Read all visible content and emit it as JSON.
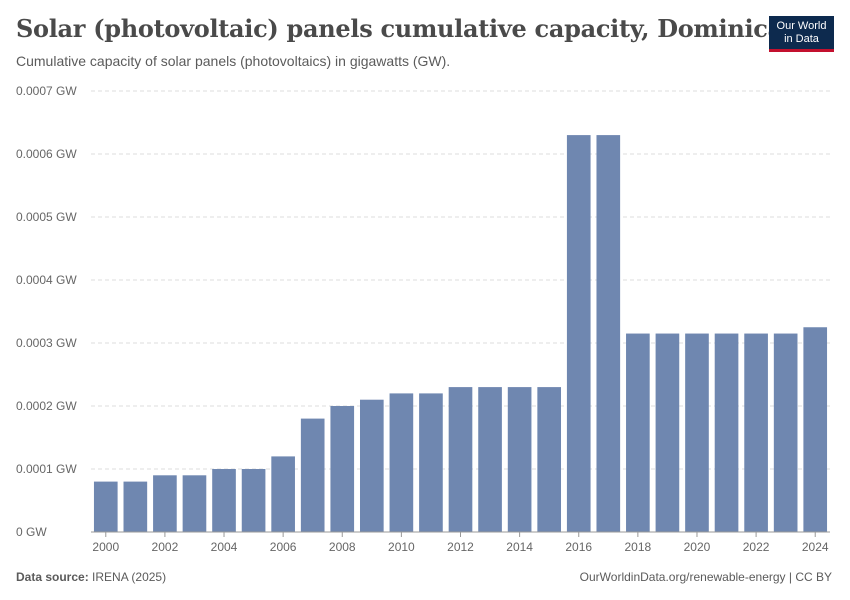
{
  "header": {
    "title": "Solar (photovoltaic) panels cumulative capacity, Dominica",
    "subtitle": "Cumulative capacity of solar panels (photovoltaics) in gigawatts (GW)."
  },
  "logo": {
    "line1": "Our World",
    "line2": "in Data"
  },
  "footer": {
    "source_label": "Data source:",
    "source_value": "IRENA (2025)",
    "url": "OurWorldinData.org/renewable-energy | CC BY"
  },
  "colors": {
    "bar": "#6f87b0",
    "grid": "#dddddd",
    "axis": "#999999"
  },
  "chart_data": {
    "type": "bar",
    "title": "Solar (photovoltaic) panels cumulative capacity, Dominica",
    "xlabel": "",
    "ylabel": "GW",
    "categories": [
      "2000",
      "2001",
      "2002",
      "2003",
      "2004",
      "2005",
      "2006",
      "2007",
      "2008",
      "2009",
      "2010",
      "2011",
      "2012",
      "2013",
      "2014",
      "2015",
      "2016",
      "2017",
      "2018",
      "2019",
      "2020",
      "2021",
      "2022",
      "2023",
      "2024"
    ],
    "values": [
      8e-05,
      8e-05,
      9e-05,
      9e-05,
      0.0001,
      0.0001,
      0.00012,
      0.00018,
      0.0002,
      0.00021,
      0.00022,
      0.00022,
      0.00023,
      0.00023,
      0.00023,
      0.00023,
      0.00063,
      0.00063,
      0.000315,
      0.000315,
      0.000315,
      0.000315,
      0.000315,
      0.000315,
      0.000325
    ],
    "ylim": [
      0,
      0.0007
    ],
    "y_ticks": [
      {
        "value": 0,
        "label": "0 GW"
      },
      {
        "value": 0.0001,
        "label": "0.0001 GW"
      },
      {
        "value": 0.0002,
        "label": "0.0002 GW"
      },
      {
        "value": 0.0003,
        "label": "0.0003 GW"
      },
      {
        "value": 0.0004,
        "label": "0.0004 GW"
      },
      {
        "value": 0.0005,
        "label": "0.0005 GW"
      },
      {
        "value": 0.0006,
        "label": "0.0006 GW"
      },
      {
        "value": 0.0007,
        "label": "0.0007 GW"
      }
    ],
    "x_ticks": [
      "2000",
      "2002",
      "2004",
      "2006",
      "2008",
      "2010",
      "2012",
      "2014",
      "2016",
      "2018",
      "2020",
      "2022",
      "2024"
    ],
    "grid": true
  }
}
